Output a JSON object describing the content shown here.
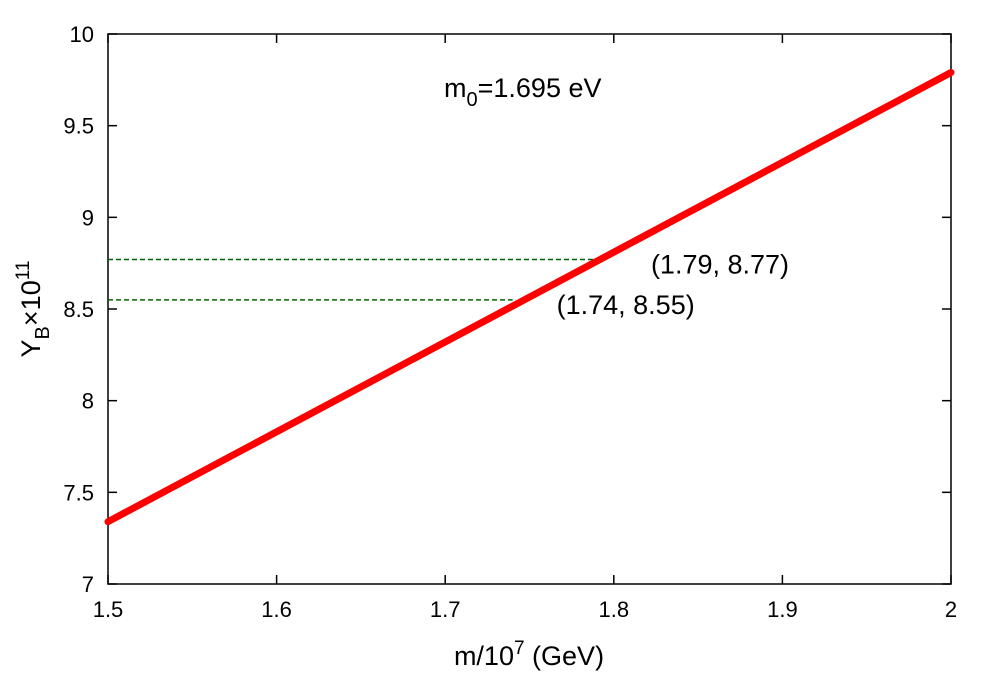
{
  "chart_data": {
    "type": "line",
    "title": "",
    "annotation_top": {
      "base": "m",
      "sub": "0",
      "rest": "=1.695 eV"
    },
    "xlabel": {
      "base": "m/10",
      "sup": "7",
      "rest": " (GeV)"
    },
    "ylabel": {
      "base": "Y",
      "sub": "B",
      "mid": "×10",
      "sup": "11"
    },
    "xlim": [
      1.5,
      2.0
    ],
    "ylim": [
      7.0,
      10.0
    ],
    "x_ticks": [
      "1.5",
      "1.6",
      "1.7",
      "1.8",
      "1.9",
      "2"
    ],
    "y_ticks": [
      "7",
      "7.5",
      "8",
      "8.5",
      "9",
      "9.5",
      "10"
    ],
    "grid": false,
    "series": [
      {
        "color": "#ff0000",
        "x": [
          1.5,
          2.0
        ],
        "y": [
          7.34,
          9.79
        ]
      }
    ],
    "reference_lines": [
      {
        "x": 1.79,
        "y": 8.77,
        "label": "(1.79, 8.77)",
        "color": "#006400"
      },
      {
        "x": 1.74,
        "y": 8.55,
        "label": "(1.74, 8.55)",
        "color": "#006400"
      }
    ]
  }
}
